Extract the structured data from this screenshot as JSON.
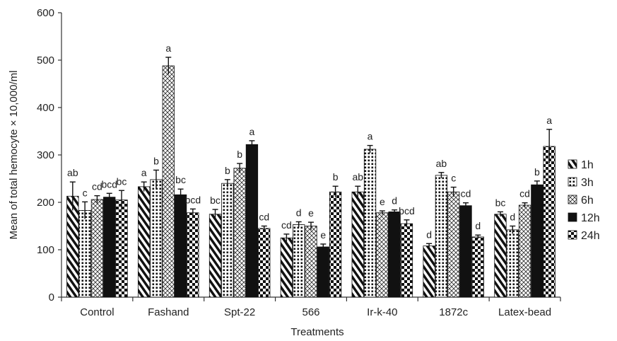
{
  "chart_data": {
    "type": "bar",
    "xlabel": "Treatments",
    "ylabel": "Mean of total hemocyte × 10,000/ml",
    "ylim": [
      0,
      600
    ],
    "yticks": [
      0,
      100,
      200,
      300,
      400,
      500,
      600
    ],
    "grid": false,
    "legend_position": "right",
    "categories": [
      "Control",
      "Fashand",
      "Spt-22",
      "566",
      "Ir-k-40",
      "1872c",
      "Latex-bead"
    ],
    "series": [
      {
        "name": "1h",
        "pattern": "diag",
        "values": [
          213,
          233,
          175,
          125,
          222,
          108,
          175
        ],
        "errors": [
          30,
          10,
          10,
          8,
          12,
          5,
          5
        ],
        "letters": [
          "ab",
          "a",
          "bc",
          "cd",
          "ab",
          "d",
          "bc"
        ]
      },
      {
        "name": "3h",
        "pattern": "dots",
        "values": [
          183,
          248,
          240,
          153,
          312,
          257,
          142
        ],
        "errors": [
          18,
          20,
          8,
          6,
          8,
          6,
          8
        ],
        "letters": [
          "c",
          "b",
          "b",
          "d",
          "a",
          "ab",
          "d"
        ]
      },
      {
        "name": "6h",
        "pattern": "cross",
        "values": [
          206,
          488,
          272,
          150,
          178,
          222,
          194
        ],
        "errors": [
          8,
          18,
          10,
          8,
          4,
          10,
          5
        ],
        "letters": [
          "cd",
          "a",
          "b",
          "e",
          "e",
          "c",
          "cd"
        ]
      },
      {
        "name": "12h",
        "pattern": "solid",
        "values": [
          211,
          216,
          322,
          106,
          180,
          193,
          237
        ],
        "errors": [
          8,
          12,
          8,
          6,
          4,
          6,
          8
        ],
        "letters": [
          "bcd",
          "bc",
          "a",
          "e",
          "d",
          "cd",
          "b"
        ]
      },
      {
        "name": "24h",
        "pattern": "checker",
        "values": [
          205,
          178,
          145,
          222,
          155,
          127,
          318
        ],
        "errors": [
          20,
          8,
          5,
          12,
          8,
          4,
          36
        ],
        "letters": [
          "bc",
          "bcd",
          "cd",
          "b",
          "bcd",
          "d",
          "a"
        ]
      }
    ]
  }
}
